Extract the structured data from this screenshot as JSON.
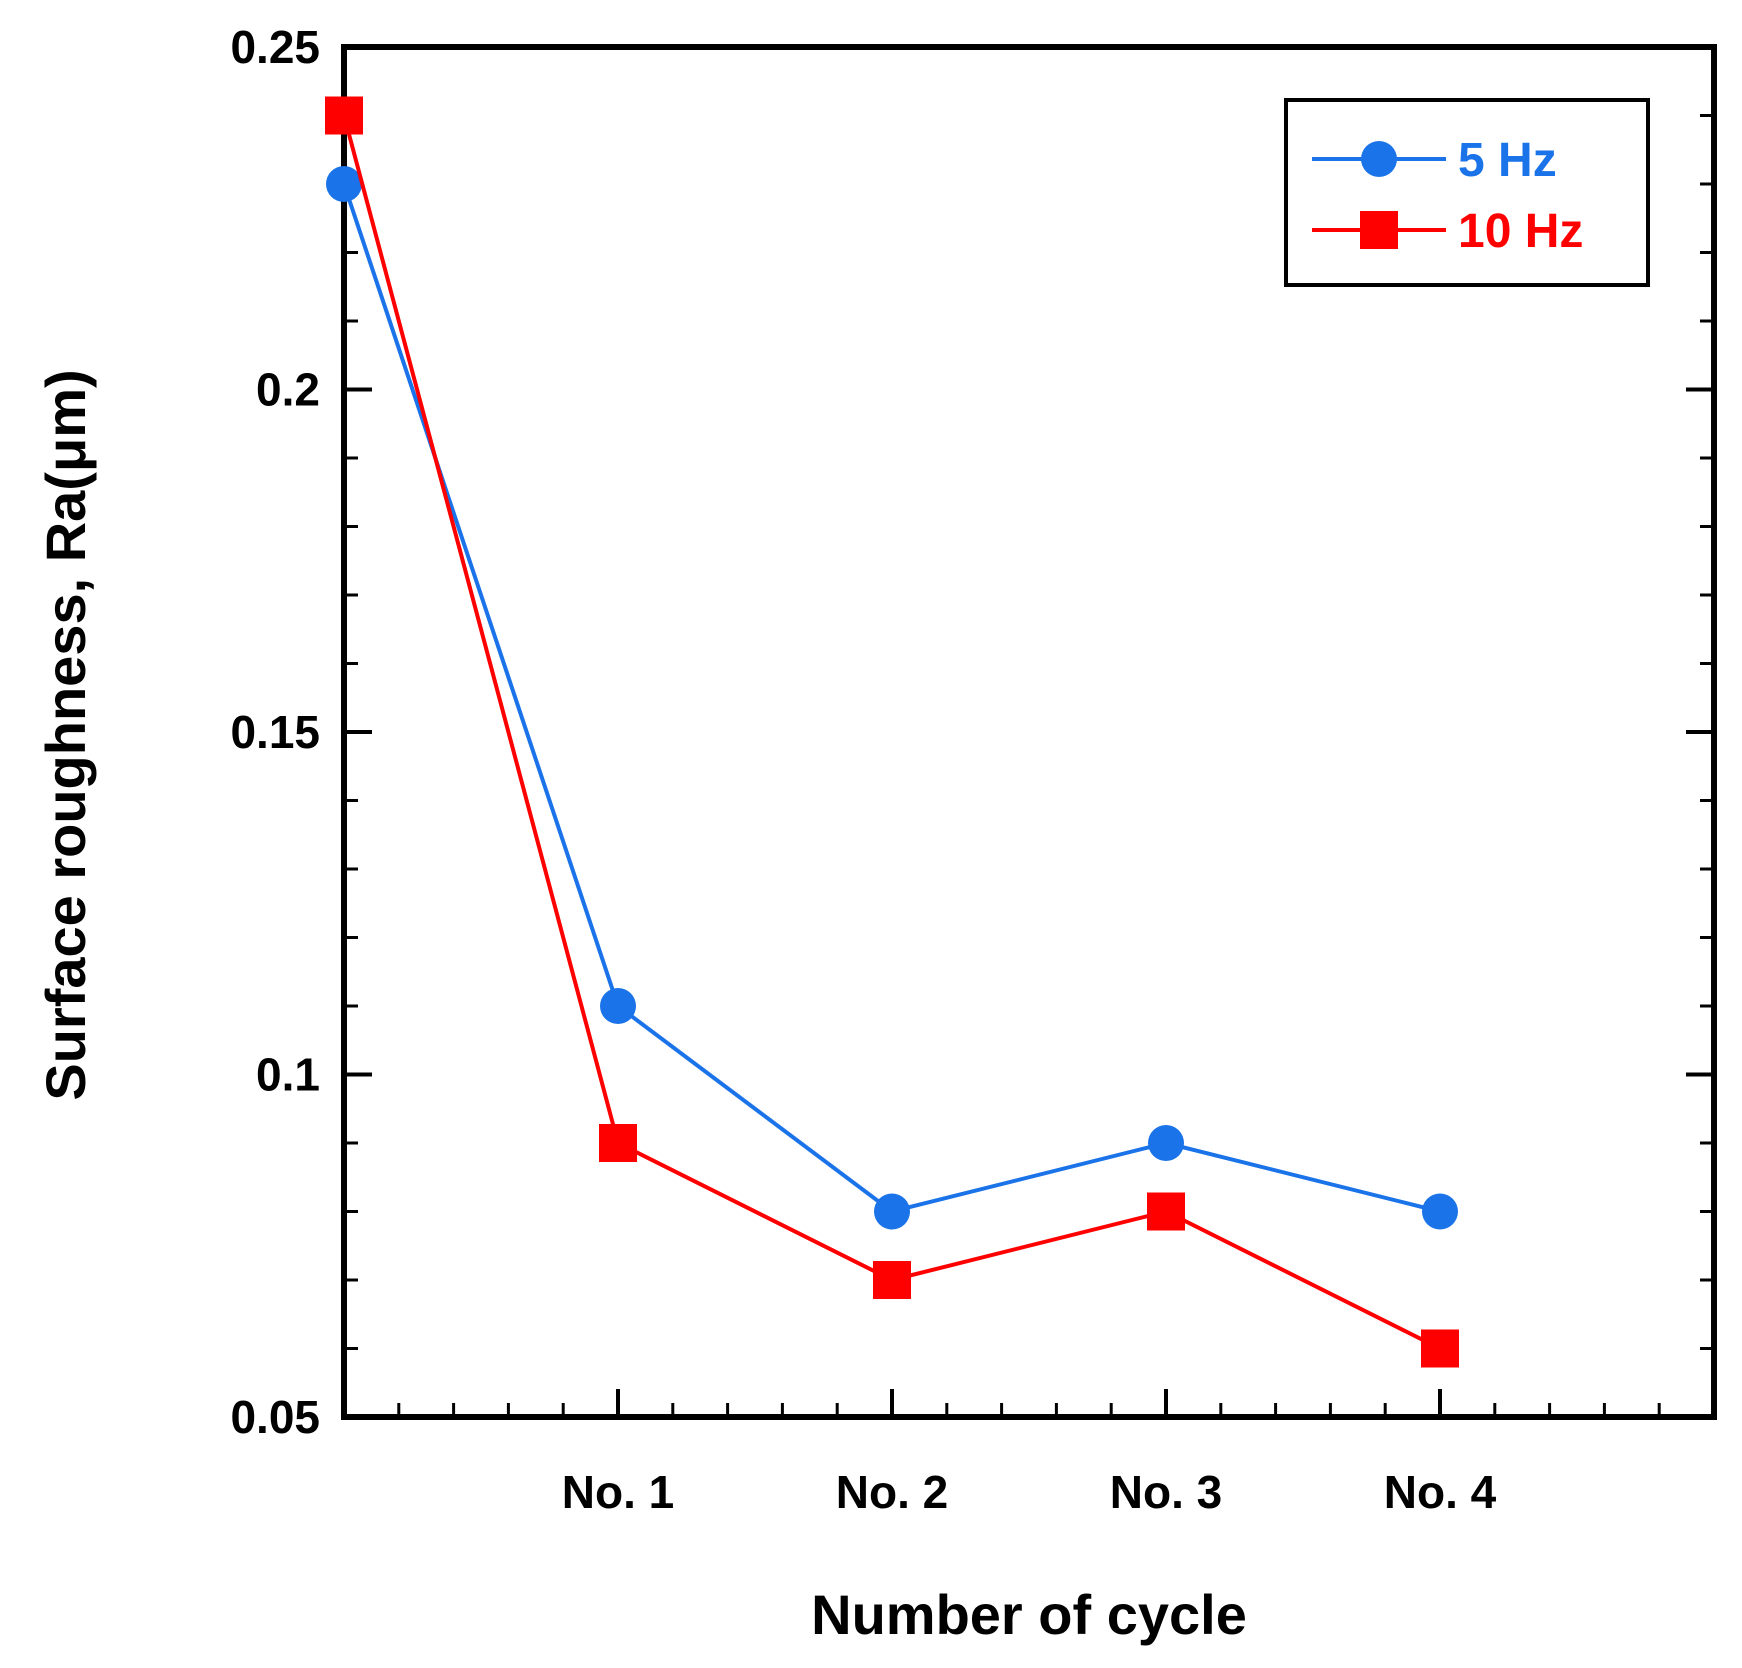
{
  "chart_data": {
    "type": "line",
    "title": "",
    "xlabel": "Number of cycle",
    "ylabel": "Surface roughness, Ra(μm)",
    "ylim": [
      0.05,
      0.25
    ],
    "xlim": [
      0,
      5
    ],
    "x": [
      0,
      1,
      2,
      3,
      4
    ],
    "x_tick_labels": [
      {
        "x": 1,
        "label": "No. 1"
      },
      {
        "x": 2,
        "label": "No. 2"
      },
      {
        "x": 3,
        "label": "No. 3"
      },
      {
        "x": 4,
        "label": "No. 4"
      }
    ],
    "y_tick_labels": [
      {
        "y": 0.05,
        "label": "0.05"
      },
      {
        "y": 0.1,
        "label": "0.1"
      },
      {
        "y": 0.15,
        "label": "0.15"
      },
      {
        "y": 0.2,
        "label": "0.2"
      },
      {
        "y": 0.25,
        "label": "0.25"
      }
    ],
    "grid": false,
    "legend": "top-right",
    "series": [
      {
        "name": "5 Hz",
        "color": "#1a73e8",
        "marker": "circle",
        "values": [
          0.23,
          0.11,
          0.08,
          0.09,
          0.08
        ]
      },
      {
        "name": "10 Hz",
        "color": "#ff0000",
        "marker": "square",
        "values": [
          0.24,
          0.09,
          0.07,
          0.08,
          0.06
        ]
      }
    ]
  }
}
